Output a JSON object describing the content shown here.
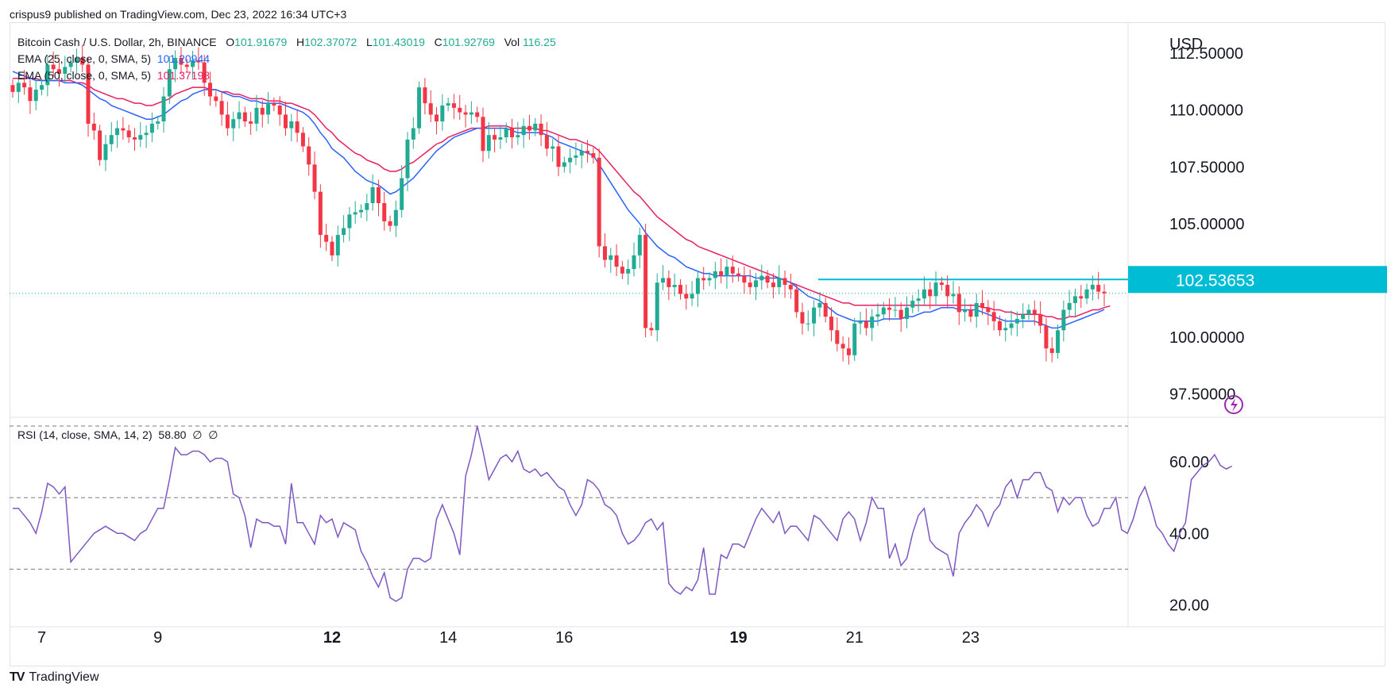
{
  "header": {
    "credit": "crispus9 published on TradingView.com, Dec 23, 2022 16:34 UTC+3"
  },
  "legend": {
    "symbol": "Bitcoin Cash / U.S. Dollar, 2h, BINANCE",
    "o_label": "O",
    "o": "101.91679",
    "h_label": "H",
    "h": "102.37072",
    "l_label": "L",
    "l": "101.43019",
    "c_label": "C",
    "c": "101.92769",
    "vol_label": "Vol",
    "vol": "116.25",
    "ema25_label": "EMA (25, close, 0, SMA, 5)",
    "ema25": "101.20944",
    "ema50_label": "EMA (50, close, 0, SMA, 5)",
    "ema50": "101.37198"
  },
  "rsi_legend": {
    "label": "RSI (14, close, SMA, 14, 2)",
    "value": "58.80",
    "extra1": "∅",
    "extra2": "∅"
  },
  "currency": "USD",
  "price_label": "102.53653",
  "brand": "TradingView",
  "colors": {
    "up": "#22ab94",
    "down": "#f23645",
    "ema25": "#2962ff",
    "ema50": "#e91e63",
    "rsi": "#7e57c2",
    "level": "#00bcd4",
    "price_tag": "#00bcd4"
  },
  "chart_data": [
    {
      "type": "candlestick",
      "title": "",
      "y_ticks": [
        "112.50000",
        "110.00000",
        "107.50000",
        "105.00000",
        "100.00000",
        "97.50000"
      ],
      "ylim": [
        96.5,
        113.8
      ],
      "x_ticks": [
        "7",
        "9",
        "12",
        "14",
        "16",
        "19",
        "21",
        "23"
      ],
      "x_tick_index": [
        5,
        25,
        55,
        75,
        95,
        125,
        145,
        165
      ],
      "close": [
        110.8,
        111.2,
        111.0,
        110.4,
        110.9,
        111.1,
        112.0,
        111.8,
        111.6,
        111.9,
        112.1,
        112.3,
        112.0,
        109.4,
        109.1,
        107.8,
        108.5,
        108.9,
        109.2,
        109.1,
        108.8,
        108.7,
        108.9,
        109.0,
        109.4,
        109.5,
        110.6,
        111.8,
        112.3,
        112.0,
        111.9,
        112.2,
        112.1,
        111.2,
        110.6,
        110.4,
        109.8,
        109.2,
        109.6,
        109.9,
        109.5,
        109.4,
        110.1,
        109.8,
        110.3,
        110.2,
        109.8,
        109.2,
        109.5,
        109.0,
        108.4,
        107.6,
        106.4,
        104.5,
        104.2,
        103.6,
        104.5,
        104.8,
        105.4,
        105.5,
        105.6,
        105.9,
        106.6,
        105.9,
        105.1,
        104.9,
        105.6,
        107.0,
        108.7,
        109.2,
        111.0,
        110.3,
        109.8,
        109.5,
        110.2,
        110.3,
        110.1,
        109.9,
        109.8,
        109.9,
        109.7,
        108.2,
        108.9,
        108.7,
        108.8,
        109.2,
        108.8,
        108.9,
        109.3,
        109.1,
        109.4,
        108.9,
        108.3,
        108.4,
        107.5,
        107.7,
        107.9,
        108.0,
        108.2,
        108.1,
        107.9,
        104.0,
        103.4,
        103.6,
        103.1,
        102.8,
        103.0,
        103.6,
        104.5,
        100.4,
        100.3,
        102.4,
        102.6,
        102.2,
        102.3,
        101.9,
        101.7,
        101.9,
        102.6,
        102.5,
        102.6,
        102.9,
        102.7,
        103.1,
        102.8,
        102.7,
        102.4,
        102.2,
        102.5,
        102.7,
        102.4,
        102.2,
        102.6,
        102.3,
        102.1,
        101.1,
        100.6,
        100.6,
        101.3,
        101.5,
        100.9,
        100.3,
        99.7,
        99.5,
        99.2,
        100.6,
        100.7,
        100.4,
        100.9,
        101.0,
        101.3,
        101.2,
        101.2,
        100.8,
        101.3,
        101.6,
        101.7,
        102.1,
        101.8,
        102.4,
        102.3,
        101.8,
        101.9,
        101.1,
        101.2,
        100.9,
        101.5,
        101.3,
        101.1,
        100.7,
        100.3,
        100.4,
        100.6,
        100.8,
        101.0,
        101.2,
        101.0,
        100.5,
        99.5,
        99.3,
        100.3,
        101.2,
        101.5,
        101.8,
        101.7,
        102.1,
        102.3,
        102.0,
        101.93
      ],
      "ema25": [
        111.7,
        111.6,
        111.5,
        111.4,
        111.3,
        111.3,
        111.3,
        111.3,
        111.3,
        111.2,
        111.2,
        111.2,
        111.1,
        110.9,
        110.7,
        110.5,
        110.4,
        110.2,
        110.1,
        110.0,
        109.9,
        109.8,
        109.7,
        109.6,
        109.6,
        109.7,
        109.8,
        110.0,
        110.2,
        110.4,
        110.5,
        110.7,
        110.8,
        110.9,
        110.9,
        110.9,
        110.8,
        110.7,
        110.6,
        110.6,
        110.5,
        110.4,
        110.4,
        110.3,
        110.3,
        110.3,
        110.3,
        110.2,
        110.1,
        110.0,
        109.9,
        109.7,
        109.4,
        109.0,
        108.7,
        108.3,
        108.1,
        107.9,
        107.6,
        107.3,
        107.1,
        106.9,
        106.8,
        106.7,
        106.5,
        106.3,
        106.4,
        106.6,
        106.8,
        107.0,
        107.3,
        107.6,
        107.9,
        108.2,
        108.4,
        108.6,
        108.8,
        108.9,
        109.0,
        109.1,
        109.2,
        109.2,
        109.2,
        109.2,
        109.2,
        109.2,
        109.1,
        109.0,
        109.0,
        109.0,
        109.0,
        109.0,
        108.9,
        108.8,
        108.6,
        108.5,
        108.4,
        108.3,
        108.2,
        108.1,
        108.0,
        107.6,
        107.2,
        106.8,
        106.4,
        106.0,
        105.6,
        105.3,
        105.0,
        104.6,
        104.3,
        104.0,
        103.8,
        103.6,
        103.5,
        103.3,
        103.1,
        103.0,
        102.9,
        102.8,
        102.8,
        102.7,
        102.7,
        102.7,
        102.7,
        102.7,
        102.7,
        102.7,
        102.6,
        102.6,
        102.6,
        102.6,
        102.6,
        102.5,
        102.4,
        102.2,
        102.0,
        101.8,
        101.7,
        101.6,
        101.4,
        101.2,
        101.0,
        100.9,
        100.8,
        100.7,
        100.7,
        100.7,
        100.7,
        100.7,
        100.8,
        100.8,
        100.8,
        100.8,
        100.9,
        100.9,
        101.0,
        101.1,
        101.1,
        101.2,
        101.3,
        101.3,
        101.3,
        101.2,
        101.2,
        101.2,
        101.2,
        101.1,
        101.0,
        100.9,
        100.8,
        100.7,
        100.7,
        100.7,
        100.7,
        100.7,
        100.7,
        100.6,
        100.5,
        100.4,
        100.4,
        100.5,
        100.6,
        100.7,
        100.8,
        100.9,
        101.0,
        101.1,
        101.21
      ],
      "ema50": [
        111.4,
        111.4,
        111.4,
        111.4,
        111.4,
        111.3,
        111.3,
        111.3,
        111.3,
        111.3,
        111.3,
        111.2,
        111.2,
        111.1,
        110.9,
        110.8,
        110.7,
        110.6,
        110.5,
        110.5,
        110.4,
        110.3,
        110.3,
        110.2,
        110.2,
        110.3,
        110.4,
        110.5,
        110.7,
        110.8,
        110.9,
        111.0,
        111.0,
        111.0,
        110.9,
        110.9,
        110.8,
        110.8,
        110.7,
        110.7,
        110.6,
        110.5,
        110.5,
        110.5,
        110.4,
        110.4,
        110.4,
        110.3,
        110.3,
        110.2,
        110.1,
        110.0,
        109.8,
        109.5,
        109.2,
        109.0,
        108.7,
        108.5,
        108.3,
        108.1,
        108.0,
        107.8,
        107.7,
        107.6,
        107.4,
        107.3,
        107.3,
        107.4,
        107.6,
        107.7,
        107.9,
        108.1,
        108.3,
        108.5,
        108.6,
        108.8,
        108.9,
        109.0,
        109.1,
        109.2,
        109.2,
        109.2,
        109.3,
        109.3,
        109.3,
        109.3,
        109.2,
        109.2,
        109.2,
        109.2,
        109.2,
        109.1,
        109.1,
        109.0,
        108.9,
        108.8,
        108.7,
        108.7,
        108.6,
        108.5,
        108.4,
        108.2,
        107.9,
        107.6,
        107.3,
        107.0,
        106.7,
        106.4,
        106.2,
        105.9,
        105.6,
        105.3,
        105.1,
        104.9,
        104.7,
        104.5,
        104.3,
        104.2,
        104.0,
        103.9,
        103.8,
        103.7,
        103.6,
        103.5,
        103.4,
        103.3,
        103.2,
        103.1,
        103.0,
        102.9,
        102.8,
        102.7,
        102.6,
        102.5,
        102.4,
        102.3,
        102.2,
        102.1,
        102.0,
        101.9,
        101.8,
        101.7,
        101.6,
        101.5,
        101.5,
        101.4,
        101.4,
        101.4,
        101.4,
        101.4,
        101.4,
        101.4,
        101.4,
        101.4,
        101.4,
        101.4,
        101.4,
        101.4,
        101.4,
        101.4,
        101.4,
        101.4,
        101.4,
        101.4,
        101.4,
        101.4,
        101.4,
        101.3,
        101.3,
        101.2,
        101.2,
        101.1,
        101.1,
        101.0,
        101.0,
        101.0,
        101.0,
        101.0,
        100.9,
        100.9,
        100.8,
        100.8,
        100.9,
        100.9,
        101.0,
        101.1,
        101.2,
        101.2,
        101.3,
        101.37
      ],
      "level_line": 102.53653,
      "last_price": 101.92769
    },
    {
      "type": "line",
      "title": "RSI (14, close, SMA, 14, 2)",
      "y_ticks": [
        "60.00",
        "40.00",
        "20.00"
      ],
      "ylim": [
        15,
        72
      ],
      "bands": [
        70,
        50,
        30
      ],
      "values": [
        47,
        47,
        45,
        43,
        40,
        46,
        54,
        53,
        51,
        53,
        32,
        34,
        36,
        38,
        40,
        41,
        42,
        41,
        40,
        40,
        39,
        38,
        40,
        41,
        44,
        47,
        47,
        55,
        64,
        62,
        62,
        63,
        63,
        62,
        60,
        61,
        61,
        60,
        51,
        50,
        45,
        36,
        44,
        43,
        43,
        42,
        42,
        37,
        54,
        43,
        43,
        40,
        37,
        45,
        43,
        44,
        39,
        43,
        42,
        41,
        35,
        32,
        28,
        25,
        29,
        22,
        21,
        22,
        30,
        33,
        33,
        32,
        33,
        44,
        48,
        44,
        40,
        34,
        56,
        62,
        70,
        63,
        55,
        58,
        61,
        62,
        60,
        63,
        58,
        57,
        58,
        56,
        57,
        55,
        53,
        52,
        48,
        45,
        48,
        55,
        54,
        52,
        48,
        47,
        45,
        40,
        37,
        38,
        40,
        43,
        44,
        41,
        43,
        26,
        24,
        23,
        25,
        24,
        27,
        36,
        23,
        23,
        34,
        33,
        37,
        37,
        36,
        40,
        44,
        47,
        45,
        43,
        46,
        40,
        42,
        42,
        40,
        38,
        45,
        44,
        42,
        40,
        38,
        44,
        46,
        44,
        38,
        43,
        50,
        47,
        47,
        33,
        37,
        31,
        33,
        40,
        45,
        47,
        38,
        36,
        35,
        34,
        28,
        40,
        43,
        45,
        48,
        46,
        42,
        46,
        48,
        53,
        55,
        50,
        55,
        55,
        57,
        57,
        53,
        52,
        46,
        50,
        48,
        50,
        50,
        45,
        42,
        43,
        47,
        47,
        50,
        41,
        40,
        44,
        50,
        53,
        48,
        42,
        40,
        37,
        35,
        40,
        43,
        55,
        57,
        59,
        60,
        62,
        59,
        58,
        58.8
      ]
    }
  ]
}
